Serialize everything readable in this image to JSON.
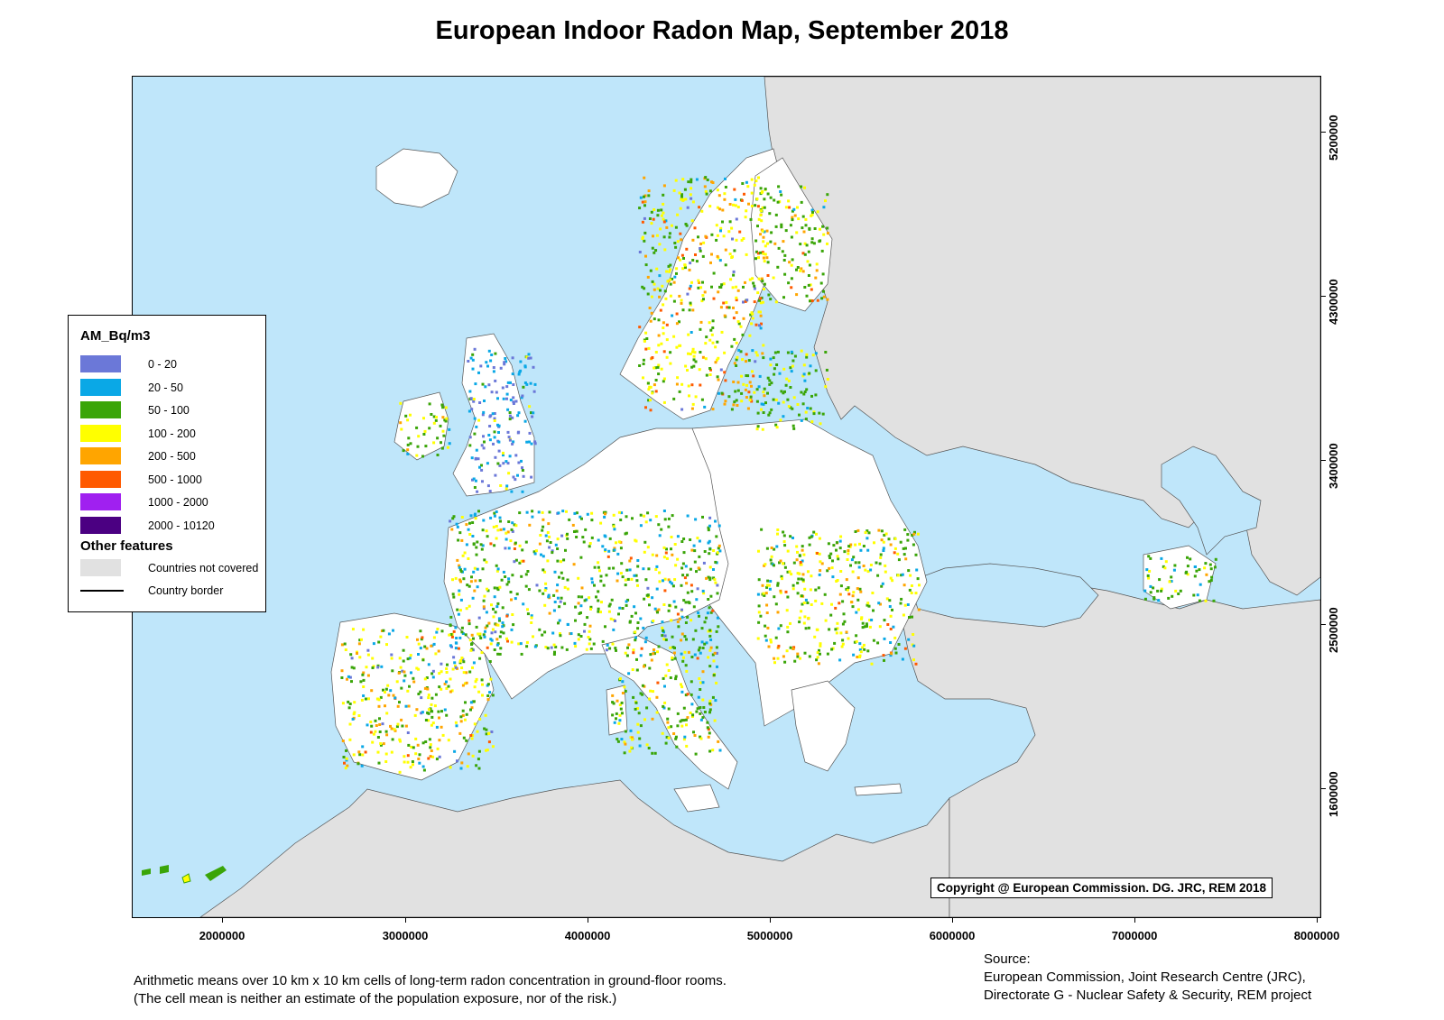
{
  "title": "European Indoor Radon Map, September 2018",
  "legend": {
    "title": "AM_Bq/m3",
    "classes": [
      {
        "label": "0 - 20",
        "color": "#6b78d8"
      },
      {
        "label": "20 - 50",
        "color": "#0aa8e6"
      },
      {
        "label": "50 - 100",
        "color": "#3aa508"
      },
      {
        "label": "100 - 200",
        "color": "#ffff00"
      },
      {
        "label": "200 - 500",
        "color": "#ffa500"
      },
      {
        "label": "500 - 1000",
        "color": "#ff5a00"
      },
      {
        "label": "1000 - 2000",
        "color": "#a020f0"
      },
      {
        "label": "2000 - 10120",
        "color": "#4b0082"
      }
    ],
    "other_title": "Other features",
    "not_covered_label": "Countries not covered",
    "not_covered_color": "#e1e1e1",
    "border_label": "Country border"
  },
  "axes": {
    "x_ticks": [
      "2000000",
      "3000000",
      "4000000",
      "5000000",
      "6000000",
      "7000000",
      "8000000"
    ],
    "y_ticks": [
      "5200000",
      "4300000",
      "3400000",
      "2500000",
      "1600000"
    ]
  },
  "copyright": "Copyright @ European Commission. DG. JRC, REM 2018",
  "note": {
    "line1": "Arithmetic means over 10 km x 10 km cells of long-term radon concentration in ground-floor rooms.",
    "line2": "(The cell mean is neither an estimate of the population exposure, nor of the risk.)"
  },
  "source": {
    "line1": "Source:",
    "line2": "European Commission, Joint Research Centre (JRC),",
    "line3": "Directorate G - Nuclear Safety & Security, REM project"
  },
  "colors": {
    "sea": "#bfe6fa",
    "covered_land": "#ffffff"
  }
}
